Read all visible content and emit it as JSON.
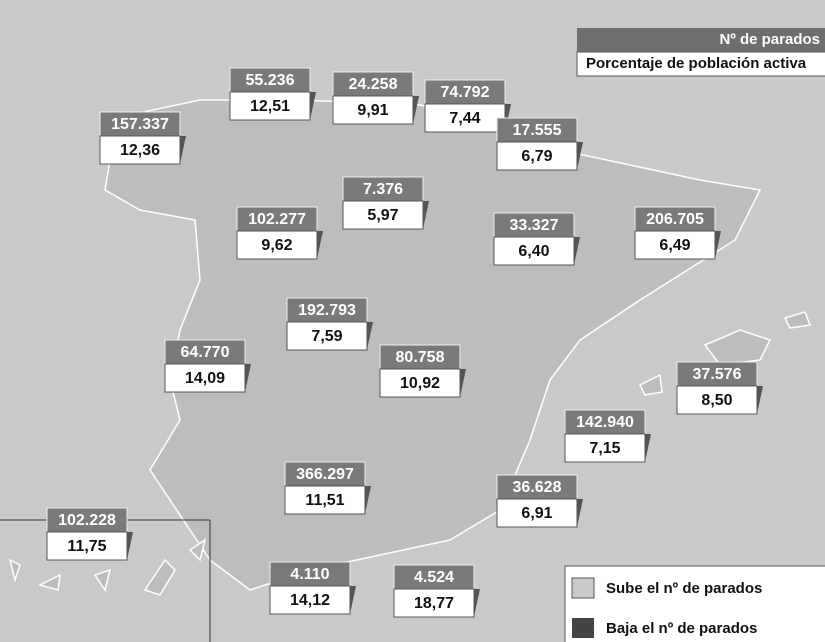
{
  "header": {
    "parados": "Nº de parados",
    "porcentaje": "Porcentaje de población activa"
  },
  "regions": [
    {
      "parados": "157.337",
      "porcentaje": "12,36"
    },
    {
      "parados": "55.236",
      "porcentaje": "12,51"
    },
    {
      "parados": "24.258",
      "porcentaje": "9,91"
    },
    {
      "parados": "74.792",
      "porcentaje": "7,44"
    },
    {
      "parados": "17.555",
      "porcentaje": "6,79"
    },
    {
      "parados": "7.376",
      "porcentaje": "5,97"
    },
    {
      "parados": "102.277",
      "porcentaje": "9,62"
    },
    {
      "parados": "33.327",
      "porcentaje": "6,40"
    },
    {
      "parados": "206.705",
      "porcentaje": "6,49"
    },
    {
      "parados": "192.793",
      "porcentaje": "7,59"
    },
    {
      "parados": "64.770",
      "porcentaje": "14,09"
    },
    {
      "parados": "80.758",
      "porcentaje": "10,92"
    },
    {
      "parados": "37.576",
      "porcentaje": "8,50"
    },
    {
      "parados": "142.940",
      "porcentaje": "7,15"
    },
    {
      "parados": "366.297",
      "porcentaje": "11,51"
    },
    {
      "parados": "36.628",
      "porcentaje": "6,91"
    },
    {
      "parados": "102.228",
      "porcentaje": "11,75"
    },
    {
      "parados": "4.110",
      "porcentaje": "14,12"
    },
    {
      "parados": "4.524",
      "porcentaje": "18,77"
    }
  ],
  "legend": {
    "sube": "Sube el nº de parados",
    "baja": "Baja el nº de parados"
  }
}
